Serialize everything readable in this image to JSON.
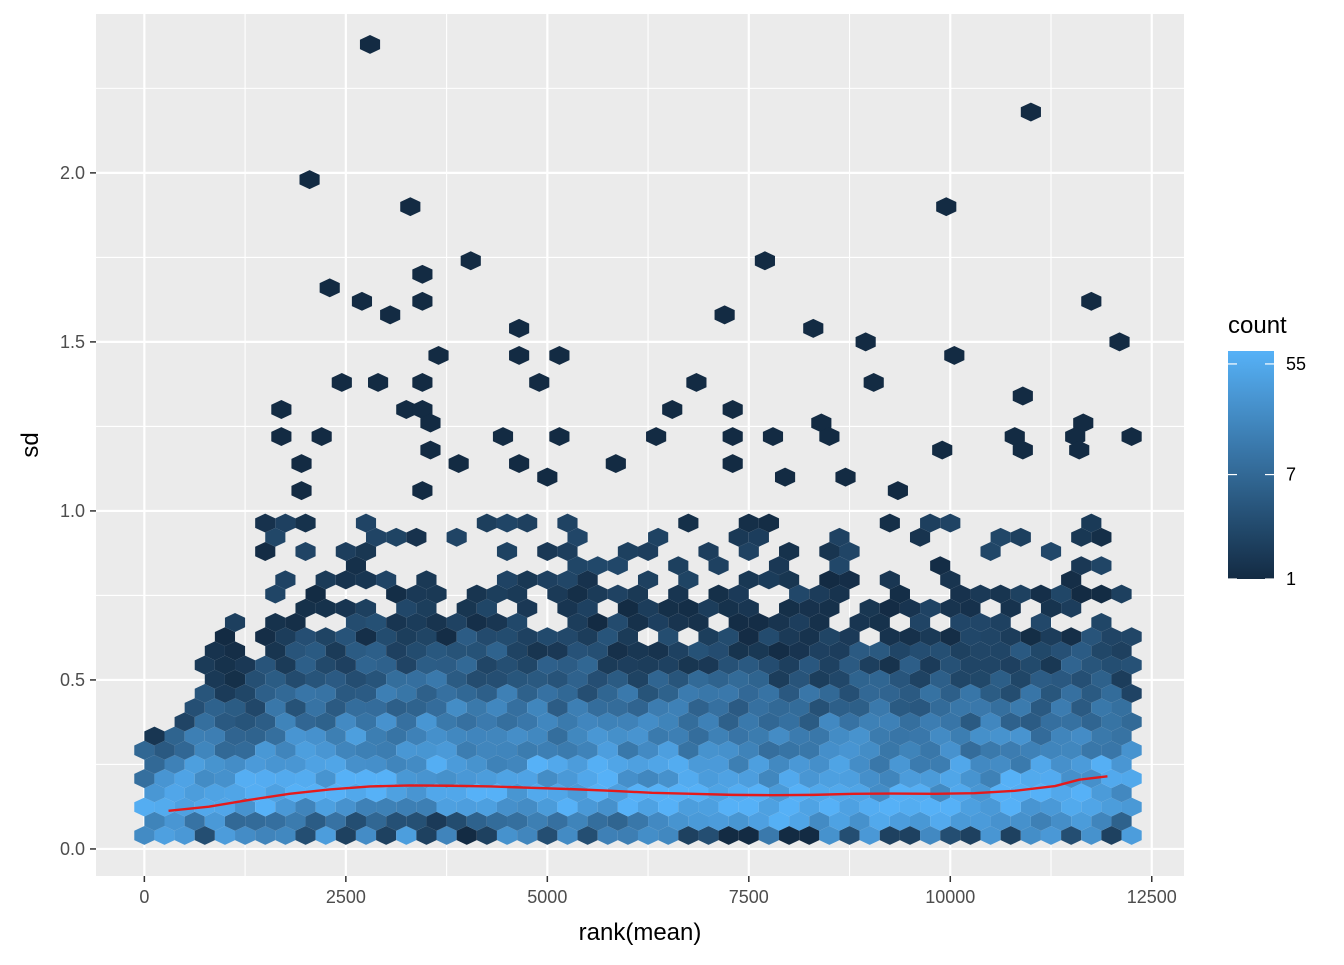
{
  "chart_data": {
    "type": "hexbin",
    "xlabel": "rank(mean)",
    "ylabel": "sd",
    "xlim": [
      -600,
      12900
    ],
    "ylim": [
      -0.08,
      2.47
    ],
    "x_ticks": [
      0,
      2500,
      5000,
      7500,
      10000,
      12500
    ],
    "x_tick_labels": [
      "0",
      "2500",
      "5000",
      "7500",
      "10000",
      "12500"
    ],
    "y_ticks": [
      0.0,
      0.5,
      1.0,
      1.5,
      2.0
    ],
    "y_tick_labels": [
      "0.0",
      "0.5",
      "1.0",
      "1.5",
      "2.0"
    ],
    "grid": true,
    "legend": {
      "title": "count",
      "position": "right",
      "scale": "log",
      "breaks": [
        1,
        7,
        55
      ],
      "break_labels": [
        "1",
        "7",
        "55"
      ],
      "range": [
        1,
        70
      ],
      "low_color": "#132B43",
      "high_color": "#56B1F7"
    },
    "bin_width_x": 250,
    "bin_height_y": 0.042,
    "outliers": [
      [
        2800,
        2.38
      ],
      [
        11000,
        2.18
      ],
      [
        2050,
        1.98
      ],
      [
        3300,
        1.9
      ],
      [
        9950,
        1.9
      ],
      [
        4050,
        1.74
      ],
      [
        7700,
        1.74
      ],
      [
        3450,
        1.7
      ],
      [
        2300,
        1.66
      ],
      [
        2700,
        1.62
      ],
      [
        3450,
        1.62
      ],
      [
        11750,
        1.62
      ],
      [
        3050,
        1.58
      ],
      [
        7200,
        1.58
      ],
      [
        4650,
        1.54
      ],
      [
        8300,
        1.54
      ],
      [
        8950,
        1.5
      ],
      [
        12100,
        1.5
      ],
      [
        3650,
        1.46
      ],
      [
        4650,
        1.46
      ],
      [
        5150,
        1.46
      ],
      [
        10050,
        1.46
      ],
      [
        2450,
        1.38
      ],
      [
        2900,
        1.38
      ],
      [
        3450,
        1.38
      ],
      [
        4900,
        1.38
      ],
      [
        6850,
        1.38
      ],
      [
        9050,
        1.38
      ],
      [
        10900,
        1.34
      ],
      [
        1700,
        1.3
      ],
      [
        3250,
        1.3
      ],
      [
        3450,
        1.3
      ],
      [
        6550,
        1.3
      ],
      [
        7300,
        1.3
      ],
      [
        3550,
        1.26
      ],
      [
        8400,
        1.26
      ],
      [
        11650,
        1.26
      ],
      [
        1700,
        1.22
      ],
      [
        2200,
        1.22
      ],
      [
        4450,
        1.22
      ],
      [
        5150,
        1.22
      ],
      [
        6350,
        1.22
      ],
      [
        7300,
        1.22
      ],
      [
        7800,
        1.22
      ],
      [
        8500,
        1.22
      ],
      [
        10800,
        1.22
      ],
      [
        11550,
        1.22
      ],
      [
        12250,
        1.22
      ],
      [
        3550,
        1.18
      ],
      [
        9900,
        1.18
      ],
      [
        10900,
        1.18
      ],
      [
        11600,
        1.18
      ],
      [
        1950,
        1.14
      ],
      [
        3900,
        1.14
      ],
      [
        4650,
        1.14
      ],
      [
        5850,
        1.14
      ],
      [
        7300,
        1.14
      ],
      [
        5000,
        1.1
      ],
      [
        7950,
        1.1
      ],
      [
        8700,
        1.1
      ],
      [
        1950,
        1.06
      ],
      [
        3450,
        1.06
      ],
      [
        9350,
        1.06
      ]
    ],
    "trend": {
      "color": "#E41A1C",
      "x": [
        300,
        800,
        1300,
        1800,
        2300,
        2800,
        3300,
        3800,
        4300,
        4800,
        5300,
        5800,
        6300,
        6800,
        7300,
        7800,
        8300,
        8800,
        9300,
        9800,
        10300,
        10800,
        11300,
        11600,
        11950
      ],
      "y": [
        0.113,
        0.125,
        0.145,
        0.163,
        0.176,
        0.185,
        0.188,
        0.187,
        0.185,
        0.181,
        0.177,
        0.172,
        0.166,
        0.163,
        0.16,
        0.159,
        0.16,
        0.163,
        0.164,
        0.163,
        0.165,
        0.172,
        0.186,
        0.205,
        0.215
      ]
    }
  }
}
